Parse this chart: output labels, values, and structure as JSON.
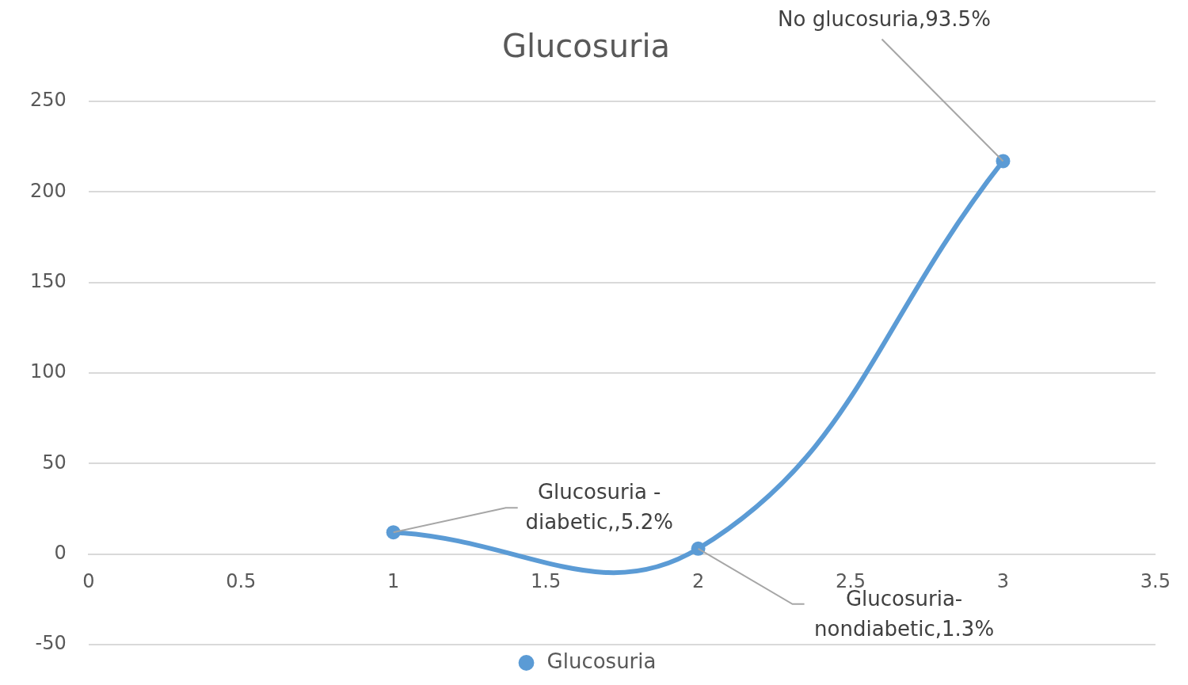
{
  "chart_data": {
    "type": "line",
    "title": "Glucosuria",
    "x": [
      1,
      2,
      3
    ],
    "series": [
      {
        "name": "Glucosuria",
        "color": "#5b9bd5",
        "values": [
          12,
          3,
          217
        ]
      }
    ],
    "xlim": [
      0,
      3.5
    ],
    "xticks": [
      0,
      0.5,
      1,
      1.5,
      2,
      2.5,
      3,
      3.5
    ],
    "ylim": [
      -50,
      250
    ],
    "yticks": [
      -50,
      0,
      50,
      100,
      150,
      200,
      250
    ],
    "grid": "y",
    "legend": "bottom",
    "marker": "circle",
    "line_style": "solid",
    "annotations": [
      {
        "text": "Glucosuria - diabetic,,5.2%",
        "x": 1,
        "y": 12
      },
      {
        "text": "Glucosuria-nondiabetic,1.3%",
        "x": 2,
        "y": 3
      },
      {
        "text": "No glucosuria,93.5%",
        "x": 3,
        "y": 217
      }
    ]
  }
}
